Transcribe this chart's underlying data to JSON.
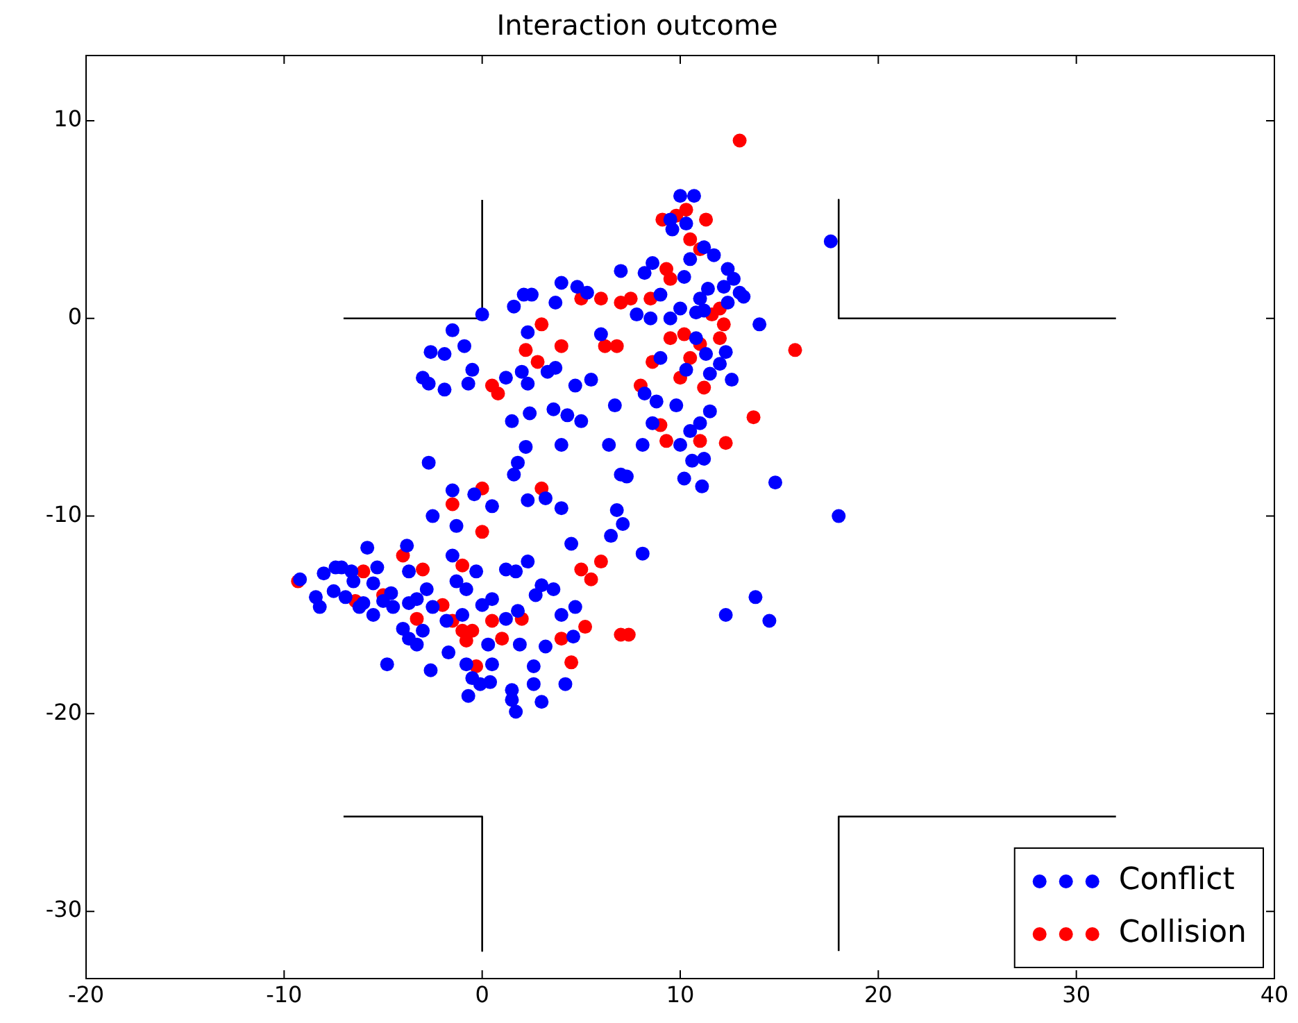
{
  "chart_data": {
    "type": "scatter",
    "title": "Interaction outcome",
    "xlim": [
      -20,
      40
    ],
    "ylim": [
      -33.4,
      13.3
    ],
    "xticks": [
      -20,
      -10,
      0,
      10,
      20,
      30,
      40
    ],
    "yticks": [
      -30,
      -20,
      -10,
      0,
      10
    ],
    "grid": false,
    "legend": "bottom right",
    "marker": "circle",
    "series": [
      {
        "name": "Conflict",
        "color": "#0000ff",
        "x": [
          10,
          10.7,
          9.5,
          10.3,
          9.6,
          17.6,
          10.5,
          11.7,
          11.2,
          12.4,
          12.7,
          13,
          13.2,
          12.2,
          8.6,
          7,
          8.2,
          10.2,
          11.4,
          11,
          12.4,
          14,
          4,
          5.3,
          4.8,
          3.7,
          2.5,
          2.1,
          1.6,
          0,
          -1.5,
          -1.9,
          -2.6,
          -0.9,
          -0.5,
          -3,
          -2.7,
          -1.9,
          -0.7,
          1.2,
          2,
          2.3,
          3.3,
          3.7,
          1.5,
          2.4,
          3.6,
          4.3,
          4.7,
          5.5,
          6.7,
          6.4,
          5,
          4,
          2.2,
          1.8,
          1.6,
          7,
          8.1,
          8.6,
          8.8,
          8.2,
          9.8,
          10,
          10.5,
          11,
          11.5,
          10.6,
          11.2,
          14.8,
          10.2,
          11.1,
          18,
          9,
          10.3,
          11.5,
          12,
          12.6,
          10.8,
          11.3,
          9.5,
          10,
          10.8,
          11.2,
          12.3,
          7.8,
          8.5,
          9,
          6,
          2.3,
          -2.7,
          -0.4,
          -1.5,
          -3.7,
          2.3,
          3.2,
          4,
          4.5,
          6.5,
          7.1,
          8.1,
          6.8,
          7.3,
          12.3,
          13.8,
          14.5,
          0.5,
          -2.5,
          -1.3,
          -1.3,
          -1.5,
          -0.3,
          -3.8,
          -5.8,
          -8,
          -7.4,
          -7.1,
          -8.4,
          -6.9,
          -6.5,
          -5.5,
          -5,
          -4.5,
          -3.7,
          -3.3,
          -2.8,
          -2.5,
          -4,
          -3.7,
          -4.8,
          -3.3,
          -2.6,
          -1.7,
          -0.8,
          -0.5,
          -0.1,
          0.4,
          0.5,
          0.3,
          -0.7,
          1.5,
          1.5,
          1.7,
          2.6,
          3,
          4.2,
          2.6,
          3.2,
          4.6,
          1.9,
          1.2,
          0.5,
          1.8,
          2.7,
          3,
          3.6,
          4.7,
          4,
          2.3,
          1.7,
          1.2,
          0,
          -0.8,
          -1,
          -1.8,
          -3,
          -6,
          -7.5,
          -9.2,
          -8.2,
          -4.6,
          -5.5,
          -6.2,
          -6.6,
          -5.3
        ],
        "values": [
          6.2,
          6.2,
          5,
          4.8,
          4.5,
          3.9,
          3,
          3.2,
          3.6,
          2.5,
          2,
          1.3,
          1.1,
          1.6,
          2.8,
          2.4,
          2.3,
          2.1,
          1.5,
          1,
          0.8,
          -0.3,
          1.8,
          1.3,
          1.6,
          0.8,
          1.2,
          1.2,
          0.6,
          0.2,
          -0.6,
          -1.8,
          -1.7,
          -1.4,
          -2.6,
          -3,
          -3.3,
          -3.6,
          -3.3,
          -3,
          -2.7,
          -3.3,
          -2.7,
          -2.5,
          -5.2,
          -4.8,
          -4.6,
          -4.9,
          -3.4,
          -3.1,
          -4.4,
          -6.4,
          -5.2,
          -6.4,
          -6.5,
          -7.3,
          -7.9,
          -7.9,
          -6.4,
          -5.3,
          -4.2,
          -3.8,
          -4.4,
          -6.4,
          -5.7,
          -5.3,
          -4.7,
          -7.2,
          -7.1,
          -8.3,
          -8.1,
          -8.5,
          -10,
          -2,
          -2.6,
          -2.8,
          -2.3,
          -3.1,
          -1,
          -1.8,
          0,
          0.5,
          0.3,
          0.4,
          -1.7,
          0.2,
          0,
          1.2,
          -0.8,
          -0.7,
          -7.3,
          -8.9,
          -8.7,
          -12.8,
          -9.2,
          -9.1,
          -9.6,
          -11.4,
          -11,
          -10.4,
          -11.9,
          -9.7,
          -8,
          -15,
          -14.1,
          -15.3,
          -9.5,
          -10,
          -10.5,
          -13.3,
          -12,
          -12.8,
          -11.5,
          -11.6,
          -12.9,
          -12.6,
          -12.6,
          -14.1,
          -14.1,
          -13.3,
          -13.4,
          -14.3,
          -14.6,
          -14.4,
          -14.2,
          -13.7,
          -14.6,
          -15.7,
          -16.2,
          -17.5,
          -16.5,
          -17.8,
          -16.9,
          -17.5,
          -18.2,
          -18.5,
          -18.4,
          -17.5,
          -16.5,
          -19.1,
          -19.3,
          -18.8,
          -19.9,
          -18.5,
          -19.4,
          -18.5,
          -17.6,
          -16.6,
          -16.1,
          -16.5,
          -15.2,
          -14.2,
          -14.8,
          -14,
          -13.5,
          -13.7,
          -14.6,
          -15,
          -12.3,
          -12.8,
          -12.7,
          -14.5,
          -13.7,
          -15,
          -15.3,
          -15.8,
          -14.4,
          -13.8,
          -13.2,
          -14.6,
          -13.9,
          -15,
          -14.6,
          -12.8,
          -12.6
        ]
      },
      {
        "name": "Collision",
        "color": "#ff0000",
        "x": [
          13,
          9.1,
          10.3,
          11.3,
          9.8,
          10.5,
          11,
          9.3,
          9.5,
          8.5,
          7.5,
          7,
          6,
          5,
          3,
          2.2,
          4,
          0.5,
          0.8,
          2.8,
          6.2,
          6.8,
          8,
          9,
          9.3,
          8.6,
          10,
          10.5,
          11.2,
          11.6,
          12,
          12.2,
          11,
          9.5,
          10.2,
          15.8,
          12.3,
          13.7,
          11,
          12,
          3,
          0,
          -1.5,
          0,
          -4,
          -1,
          -6,
          -3,
          -9.3,
          -5,
          -2,
          -3.3,
          -1.5,
          -1,
          -0.8,
          -0.5,
          0.5,
          1,
          2,
          4,
          4.5,
          -0.3,
          5,
          6,
          5.5,
          7,
          7.4,
          5.2,
          -6.4
        ],
        "values": [
          9,
          5,
          5.5,
          5,
          5.2,
          4,
          3.5,
          2.5,
          2,
          1,
          1,
          0.8,
          1,
          1,
          -0.3,
          -1.6,
          -1.4,
          -3.4,
          -3.8,
          -2.2,
          -1.4,
          -1.4,
          -3.4,
          -5.4,
          -6.2,
          -2.2,
          -3,
          -2,
          -3.5,
          0.2,
          0.5,
          -0.3,
          -1.3,
          -1,
          -0.8,
          -1.6,
          -6.3,
          -5,
          -6.2,
          -1,
          -8.6,
          -8.6,
          -9.4,
          -10.8,
          -12,
          -12.5,
          -12.8,
          -12.7,
          -13.3,
          -14,
          -14.5,
          -15.2,
          -15.3,
          -15.8,
          -16.3,
          -15.8,
          -15.3,
          -16.2,
          -15.2,
          -16.2,
          -17.4,
          -17.6,
          -12.7,
          -12.3,
          -13.2,
          -16,
          -16,
          -15.6,
          -14.3
        ]
      },
      {
        "type": "line",
        "marker": "none",
        "color": "#000000",
        "x": [
          -7,
          0,
          0
        ],
        "values": [
          0,
          0,
          6
        ]
      },
      {
        "type": "line",
        "marker": "none",
        "color": "#000000",
        "x": [
          18,
          18,
          32
        ],
        "values": [
          6,
          0,
          0
        ]
      },
      {
        "type": "line",
        "marker": "none",
        "color": "#000000",
        "x": [
          -7,
          0,
          0
        ],
        "values": [
          -25.2,
          -25.2,
          -32
        ]
      },
      {
        "type": "line",
        "marker": "none",
        "color": "#000000",
        "x": [
          18,
          18,
          32
        ],
        "values": [
          -32,
          -25.2,
          -25.2
        ]
      }
    ]
  }
}
